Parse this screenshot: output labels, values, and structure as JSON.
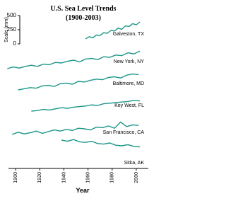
{
  "chart_data": {
    "type": "line",
    "title": "U.S. Sea Level Trends",
    "subtitle": "(1900-2003)",
    "xlabel": "Year",
    "ylabel": "Scale (mm)",
    "xlim": [
      1894,
      2010
    ],
    "xticks": [
      1900,
      1920,
      1940,
      1960,
      1980,
      2000
    ],
    "yticks": [
      0,
      250,
      500
    ],
    "color": "#1b9688",
    "series": [
      {
        "name": "Galveston, TX",
        "x": [
          1958,
          1961,
          1964,
          1967,
          1970,
          1973,
          1976,
          1979,
          1982,
          1985,
          1988,
          1991,
          1994,
          1997,
          2000,
          2003
        ],
        "values": [
          0,
          40,
          20,
          70,
          60,
          110,
          100,
          150,
          140,
          190,
          170,
          230,
          220,
          270,
          250,
          300
        ]
      },
      {
        "name": "New York, NY",
        "x": [
          1893,
          1898,
          1903,
          1908,
          1913,
          1918,
          1923,
          1928,
          1933,
          1938,
          1943,
          1948,
          1953,
          1958,
          1963,
          1968,
          1973,
          1978,
          1983,
          1988,
          1993,
          1998,
          2003
        ],
        "values": [
          0,
          30,
          10,
          40,
          60,
          40,
          80,
          70,
          110,
          100,
          130,
          150,
          120,
          170,
          180,
          160,
          210,
          200,
          240,
          230,
          280,
          260,
          310
        ]
      },
      {
        "name": "Baltimore, MD",
        "x": [
          1902,
          1907,
          1912,
          1917,
          1922,
          1927,
          1932,
          1937,
          1942,
          1947,
          1952,
          1957,
          1962,
          1967,
          1972,
          1977,
          1982,
          1987,
          1992,
          1997,
          2002
        ],
        "values": [
          0,
          20,
          40,
          30,
          70,
          80,
          60,
          110,
          120,
          100,
          150,
          140,
          170,
          190,
          180,
          220,
          230,
          210,
          260,
          280,
          270
        ]
      },
      {
        "name": "Key West, FL",
        "x": [
          1913,
          1918,
          1923,
          1928,
          1933,
          1938,
          1943,
          1948,
          1953,
          1958,
          1963,
          1968,
          1973,
          1978,
          1983,
          1988,
          1993,
          1998,
          2003
        ],
        "values": [
          0,
          10,
          30,
          20,
          40,
          60,
          50,
          70,
          80,
          90,
          110,
          100,
          130,
          140,
          150,
          160,
          170,
          190,
          180
        ]
      },
      {
        "name": "San Francisco, CA",
        "x": [
          1897,
          1902,
          1907,
          1912,
          1917,
          1922,
          1927,
          1932,
          1937,
          1942,
          1947,
          1952,
          1957,
          1962,
          1967,
          1972,
          1977,
          1982,
          1987,
          1992,
          1997,
          2002
        ],
        "values": [
          0,
          40,
          10,
          30,
          60,
          20,
          50,
          80,
          60,
          90,
          70,
          110,
          100,
          80,
          130,
          120,
          150,
          110,
          220,
          140,
          170,
          160
        ]
      },
      {
        "name": "Sitka, AK",
        "x": [
          1938,
          1943,
          1948,
          1953,
          1958,
          1963,
          1968,
          1973,
          1978,
          1983,
          1988,
          1993,
          1998,
          2003
        ],
        "values": [
          0,
          -20,
          10,
          -30,
          -40,
          -20,
          -60,
          -70,
          -50,
          -90,
          -100,
          -80,
          -110,
          -120
        ]
      }
    ]
  }
}
